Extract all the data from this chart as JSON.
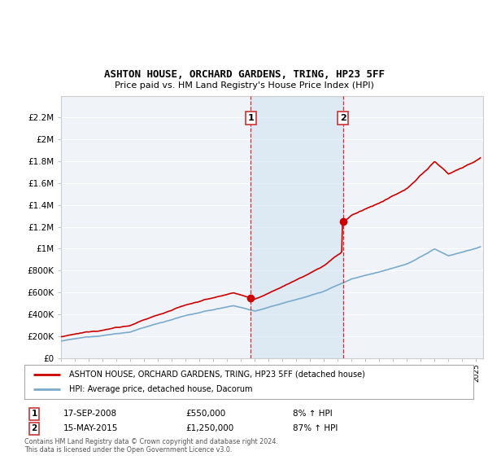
{
  "title": "ASHTON HOUSE, ORCHARD GARDENS, TRING, HP23 5FF",
  "subtitle": "Price paid vs. HM Land Registry's House Price Index (HPI)",
  "red_label": "ASHTON HOUSE, ORCHARD GARDENS, TRING, HP23 5FF (detached house)",
  "blue_label": "HPI: Average price, detached house, Dacorum",
  "transaction1": {
    "label": "1",
    "date": "17-SEP-2008",
    "price": "£550,000",
    "hpi": "8% ↑ HPI",
    "year": 2008.72
  },
  "transaction2": {
    "label": "2",
    "date": "15-MAY-2015",
    "price": "£1,250,000",
    "hpi": "87% ↑ HPI",
    "year": 2015.37
  },
  "footer": "Contains HM Land Registry data © Crown copyright and database right 2024.\nThis data is licensed under the Open Government Licence v3.0.",
  "xlim": [
    1995.0,
    2025.5
  ],
  "ylim": [
    0,
    2400000
  ],
  "yticks": [
    0,
    200000,
    400000,
    600000,
    800000,
    1000000,
    1200000,
    1400000,
    1600000,
    1800000,
    2000000,
    2200000
  ],
  "ytick_labels": [
    "£0",
    "£200K",
    "£400K",
    "£600K",
    "£800K",
    "£1M",
    "£1.2M",
    "£1.4M",
    "£1.6M",
    "£1.8M",
    "£2M",
    "£2.2M"
  ],
  "bg_color": "#ffffff",
  "plot_bg_color": "#f0f4f8",
  "grid_color": "#ffffff",
  "red_color": "#cc0000",
  "blue_color": "#7aaacc",
  "shade_color": "#cce0f0",
  "shade_alpha": 0.5
}
